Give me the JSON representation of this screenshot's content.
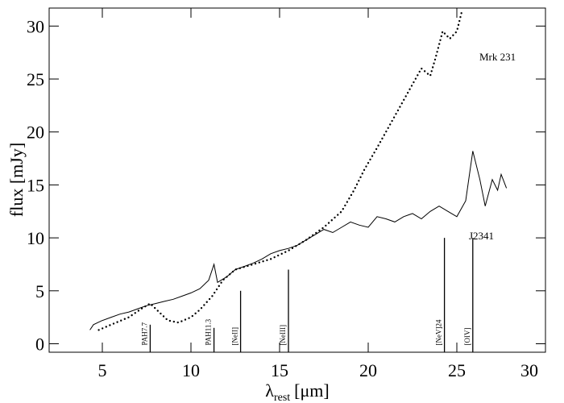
{
  "chart_data": {
    "type": "line",
    "x_label": {
      "symbol": "λ",
      "subscript": "rest",
      "unit": "[μm]"
    },
    "y_label": "flux [mJy]",
    "xlim": [
      2,
      30
    ],
    "ylim": [
      -0.8,
      31.7
    ],
    "xticks": [
      5,
      10,
      15,
      20,
      25,
      30
    ],
    "yticks": [
      0,
      5,
      10,
      15,
      20,
      25,
      30
    ],
    "series": [
      {
        "name": "J2341",
        "color": "#000000",
        "style": "solid",
        "x": [
          4.3,
          4.5,
          5,
          5.5,
          6,
          6.5,
          7,
          7.5,
          8,
          8.5,
          9,
          9.5,
          10,
          10.5,
          11,
          11.3,
          11.5,
          12,
          12.5,
          13,
          13.5,
          14,
          14.5,
          15,
          15.5,
          16,
          16.5,
          17,
          17.5,
          18,
          18.5,
          19,
          19.5,
          20,
          20.5,
          21,
          21.5,
          22,
          22.5,
          23,
          23.5,
          24,
          24.5,
          25,
          25.5,
          25.9,
          26.3,
          26.6,
          27,
          27.3,
          27.5,
          27.8
        ],
        "values": [
          1.3,
          1.8,
          2.2,
          2.5,
          2.8,
          3.0,
          3.3,
          3.6,
          3.8,
          4.0,
          4.2,
          4.5,
          4.8,
          5.2,
          6.0,
          7.5,
          5.8,
          6.3,
          7.0,
          7.3,
          7.6,
          8.0,
          8.5,
          8.8,
          9.0,
          9.3,
          9.8,
          10.3,
          10.8,
          10.5,
          11.0,
          11.5,
          11.2,
          11.0,
          12.0,
          11.8,
          11.5,
          12.0,
          12.3,
          11.8,
          12.5,
          13.0,
          12.5,
          12.0,
          13.5,
          18.2,
          15.5,
          13.0,
          15.5,
          14.5,
          16.0,
          14.7
        ]
      },
      {
        "name": "Mrk 231",
        "color": "#000000",
        "style": "dotted",
        "x": [
          4.8,
          5.5,
          6.5,
          7.2,
          7.7,
          8.2,
          8.7,
          9.3,
          10,
          10.5,
          11.2,
          11.8,
          12.5,
          13.5,
          14.5,
          15.5,
          16.5,
          17.5,
          18.5,
          19.2,
          19.8,
          20.5,
          21,
          21.5,
          22,
          22.5,
          23,
          23.5,
          23.8,
          24.2,
          24.6,
          25,
          25.3
        ],
        "values": [
          1.3,
          1.8,
          2.5,
          3.3,
          3.8,
          3.0,
          2.2,
          2.0,
          2.5,
          3.2,
          4.5,
          6.0,
          7.0,
          7.5,
          8.0,
          8.8,
          9.8,
          11.0,
          12.5,
          14.5,
          16.5,
          18.5,
          20,
          21.5,
          23,
          24.5,
          26,
          25.3,
          27,
          29.5,
          28.8,
          29.5,
          31.5
        ]
      }
    ],
    "features": [
      {
        "label": "PAH7.7",
        "x": 7.7,
        "height": 1.8
      },
      {
        "label": "PAH11.3",
        "x": 11.3,
        "height": 1.5
      },
      {
        "label": "[NeII]",
        "x": 12.8,
        "height": 5
      },
      {
        "label": "[NeIII]",
        "x": 15.5,
        "height": 7
      },
      {
        "label": "[NeV]24",
        "x": 24.3,
        "height": 10
      },
      {
        "label": "[OIV]",
        "x": 25.9,
        "height": 10
      }
    ]
  }
}
